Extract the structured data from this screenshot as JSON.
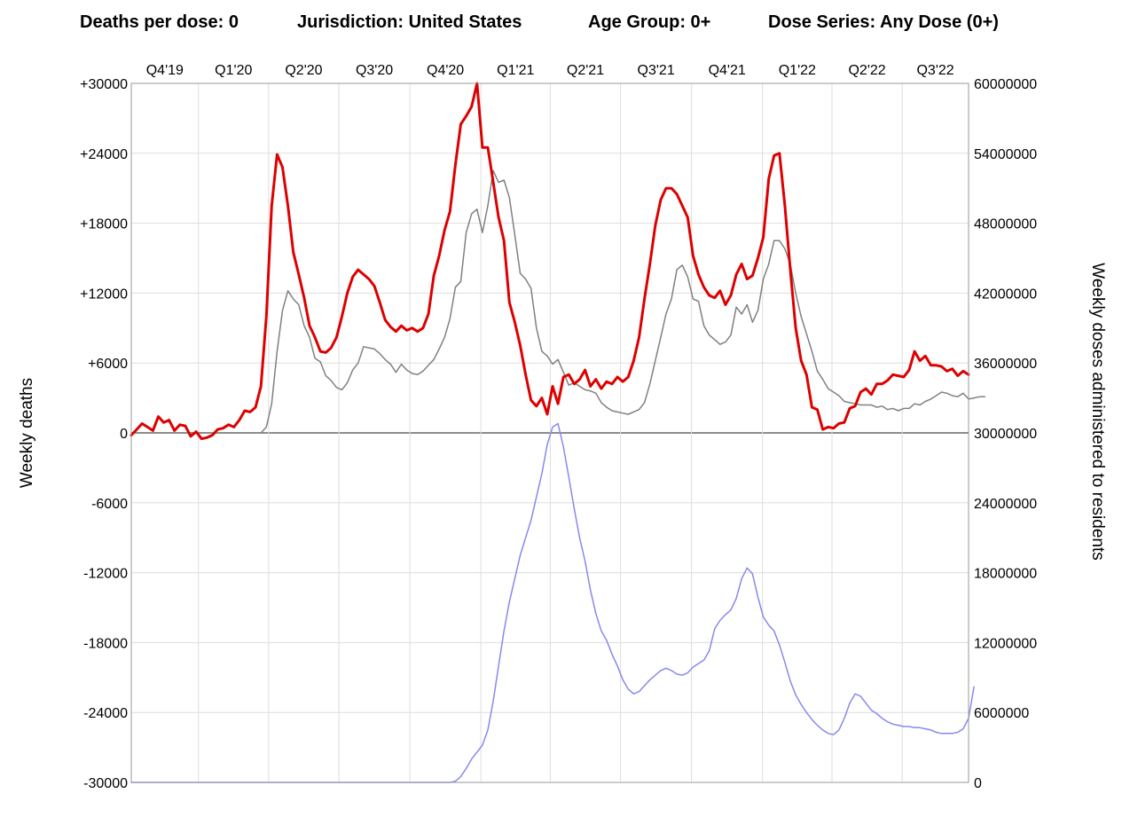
{
  "header": {
    "deaths_per_dose": "Deaths per dose: 0",
    "jurisdiction": "Jurisdiction: United States",
    "age_group": "Age Group: 0+",
    "dose_series": "Dose Series: Any Dose (0+)"
  },
  "chart_data": {
    "type": "line",
    "x_unit": "week",
    "x_range": [
      "2019-10-06",
      "2022-09-25"
    ],
    "quarter_labels": [
      "Q4'19",
      "Q1'20",
      "Q2'20",
      "Q3'20",
      "Q4'20",
      "Q1'21",
      "Q2'21",
      "Q3'21",
      "Q4'21",
      "Q1'22",
      "Q2'22",
      "Q3'22"
    ],
    "ylabel_left": "Weekly deaths",
    "ylabel_right": "Weekly doses administered to residents",
    "ylim_left": [
      -30000,
      30000
    ],
    "ylim_right": [
      0,
      60000000
    ],
    "yticks_left": [
      "+30000",
      "+24000",
      "+18000",
      "+12000",
      "+6000",
      "0",
      "-6000",
      "-12000",
      "-18000",
      "-24000",
      "-30000"
    ],
    "yticks_right": [
      "60000000",
      "54000000",
      "48000000",
      "42000000",
      "36000000",
      "30000000",
      "24000000",
      "18000000",
      "12000000",
      "6000000",
      "0"
    ],
    "grid": true,
    "series": [
      {
        "axis": "left",
        "color": "#dd0000",
        "values": [
          -200,
          300,
          800,
          500,
          200,
          1400,
          900,
          1100,
          200,
          700,
          600,
          -300,
          100,
          -500,
          -400,
          -200,
          300,
          400,
          700,
          500,
          1100,
          1900,
          1800,
          2200,
          4000,
          10000,
          19500,
          23900,
          22800,
          19500,
          15500,
          13600,
          11600,
          9200,
          8200,
          7000,
          6900,
          7300,
          8200,
          10000,
          12000,
          13400,
          14000,
          13600,
          13200,
          12600,
          11200,
          9700,
          9100,
          8700,
          9200,
          8800,
          9000,
          8700,
          9000,
          10200,
          13500,
          15200,
          17400,
          19000,
          23000,
          26500,
          27200,
          28000,
          30000,
          24500,
          24500,
          21500,
          18500,
          16500,
          11200,
          9500,
          7500,
          5000,
          2800,
          2300,
          3000,
          1600,
          4000,
          2500,
          4800,
          5000,
          4200,
          4600,
          5400,
          4000,
          4600,
          3800,
          4400,
          4200,
          4800,
          4400,
          4800,
          6200,
          8200,
          11500,
          14500,
          17800,
          20000,
          21000,
          21000,
          20500,
          19500,
          18500,
          15200,
          13600,
          12500,
          11800,
          11600,
          12200,
          11000,
          11800,
          13600,
          14500,
          13200,
          13500,
          15000,
          16800,
          21800,
          23800,
          24000,
          19500,
          14000,
          9000,
          6200,
          5000,
          2200,
          2000,
          300,
          500,
          400,
          800,
          900,
          2100,
          2300,
          3500,
          3800,
          3300,
          4200,
          4200,
          4500,
          5000,
          4900,
          4800,
          5400,
          7000,
          6200,
          6600,
          5800,
          5800,
          5700,
          5300,
          5500,
          4900,
          5300,
          5000
        ]
      },
      {
        "axis": "left",
        "color": "#808080",
        "values": [
          0,
          0,
          0,
          0,
          0,
          0,
          0,
          0,
          0,
          0,
          0,
          0,
          0,
          0,
          0,
          0,
          0,
          0,
          0,
          0,
          0,
          0,
          0,
          0,
          0,
          500,
          2500,
          7000,
          10500,
          12200,
          11500,
          11000,
          9200,
          8200,
          6400,
          6100,
          4900,
          4500,
          3900,
          3700,
          4300,
          5400,
          6000,
          7400,
          7300,
          7200,
          6800,
          6300,
          5900,
          5200,
          5900,
          5400,
          5100,
          5000,
          5300,
          5800,
          6300,
          7200,
          8200,
          9800,
          12500,
          13000,
          17200,
          18800,
          19200,
          17200,
          19500,
          22500,
          21500,
          21700,
          20200,
          17000,
          13700,
          13200,
          12400,
          9000,
          7000,
          6600,
          5900,
          6300,
          5200,
          4100,
          4300,
          4000,
          3700,
          3600,
          3400,
          2600,
          2200,
          1900,
          1800,
          1700,
          1600,
          1800,
          2000,
          2600,
          4200,
          6200,
          8200,
          10200,
          11500,
          14000,
          14400,
          13400,
          11500,
          11300,
          9200,
          8400,
          8000,
          7600,
          7800,
          8400,
          10800,
          10200,
          11000,
          9500,
          10500,
          13200,
          14500,
          16500,
          16500,
          15800,
          14500,
          12000,
          10000,
          8500,
          7000,
          5300,
          4600,
          3800,
          3500,
          3200,
          2700,
          2600,
          2500,
          2400,
          2400,
          2400,
          2200,
          2300,
          2000,
          2100,
          1900,
          2100,
          2100,
          2500,
          2400,
          2700,
          2900,
          3200,
          3500,
          3400,
          3200,
          3100,
          3400,
          2900,
          3000,
          3100,
          3100
        ]
      },
      {
        "axis": "right",
        "color": "#8888ee",
        "values": [
          0,
          0,
          0,
          0,
          0,
          0,
          0,
          0,
          0,
          0,
          0,
          0,
          0,
          0,
          0,
          0,
          0,
          0,
          0,
          0,
          0,
          0,
          0,
          0,
          0,
          0,
          0,
          0,
          0,
          0,
          0,
          0,
          0,
          0,
          0,
          0,
          0,
          0,
          0,
          0,
          0,
          0,
          0,
          0,
          0,
          0,
          0,
          0,
          0,
          0,
          0,
          0,
          0,
          0,
          0,
          0,
          0,
          0,
          0,
          0,
          100000,
          500000,
          1200000,
          2000000,
          2600000,
          3200000,
          4500000,
          7000000,
          10000000,
          13000000,
          15500000,
          17500000,
          19500000,
          21000000,
          22500000,
          24500000,
          26500000,
          29000000,
          30500000,
          30800000,
          28800000,
          26200000,
          23500000,
          21000000,
          19000000,
          16500000,
          14500000,
          13000000,
          12200000,
          11000000,
          10000000,
          8800000,
          8000000,
          7600000,
          7800000,
          8300000,
          8800000,
          9200000,
          9600000,
          9800000,
          9600000,
          9300000,
          9200000,
          9400000,
          9900000,
          10200000,
          10500000,
          11300000,
          13200000,
          13900000,
          14400000,
          14800000,
          15800000,
          17500000,
          18400000,
          17900000,
          15900000,
          14200000,
          13500000,
          13000000,
          11800000,
          10300000,
          8700000,
          7500000,
          6700000,
          6000000,
          5400000,
          4900000,
          4500000,
          4200000,
          4100000,
          4500000,
          5500000,
          6800000,
          7600000,
          7400000,
          6800000,
          6200000,
          5900000,
          5500000,
          5200000,
          5000000,
          4900000,
          4800000,
          4800000,
          4700000,
          4700000,
          4600000,
          4500000,
          4300000,
          4200000,
          4200000,
          4200000,
          4300000,
          4600000,
          5500000,
          8200000
        ]
      }
    ]
  }
}
